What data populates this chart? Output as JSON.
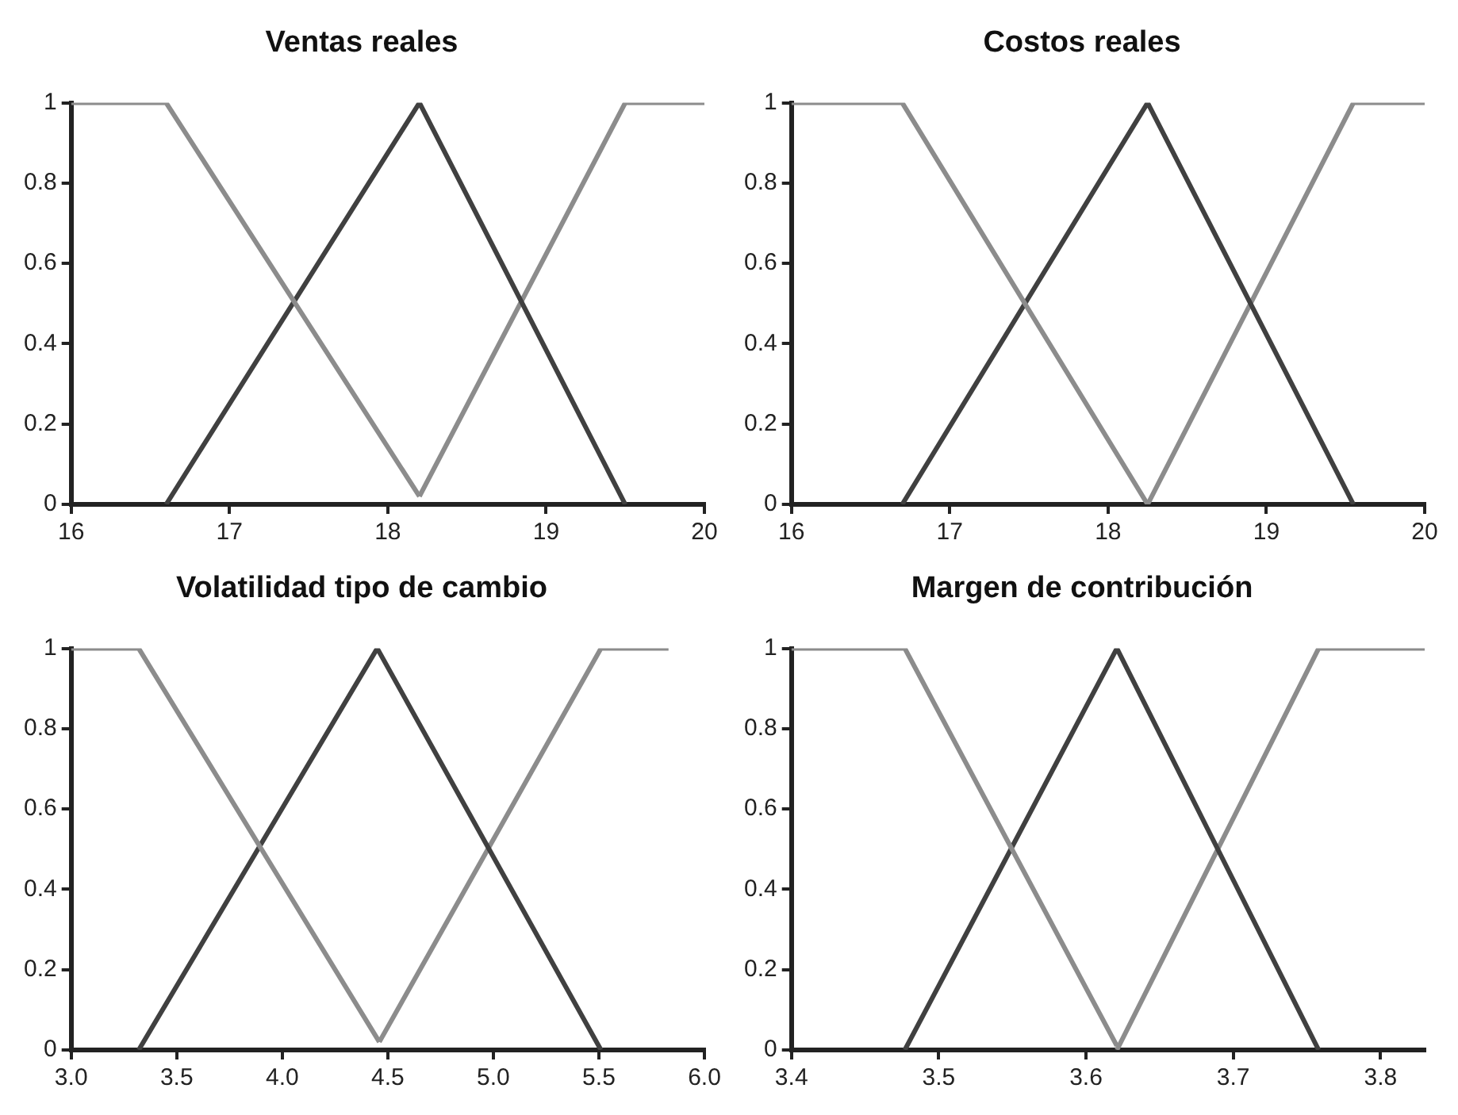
{
  "chart_data": [
    {
      "type": "line",
      "title": "Ventas reales",
      "xlim": [
        16,
        20
      ],
      "xticks": [
        16,
        17,
        18,
        19,
        20
      ],
      "ylim": [
        0,
        1
      ],
      "yticks": [
        0,
        0.2,
        0.4,
        0.6,
        0.8,
        1
      ],
      "grid": false,
      "legend": false,
      "marker": "none",
      "line_style": "solid",
      "series": [
        {
          "color": "#8c8c8c",
          "x": [
            16,
            16.6,
            18.2
          ],
          "values": [
            1,
            1,
            0.02
          ]
        },
        {
          "color": "#404040",
          "x": [
            16.6,
            18.2,
            19.5
          ],
          "values": [
            0,
            1,
            0
          ]
        },
        {
          "color": "#8c8c8c",
          "x": [
            18.2,
            19.5,
            20
          ],
          "values": [
            0.02,
            1,
            1
          ]
        }
      ]
    },
    {
      "type": "line",
      "title": "Costos reales",
      "xlim": [
        16,
        20
      ],
      "xticks": [
        16,
        17,
        18,
        19,
        20
      ],
      "ylim": [
        0,
        1
      ],
      "yticks": [
        0,
        0.2,
        0.4,
        0.6,
        0.8,
        1
      ],
      "grid": false,
      "legend": false,
      "marker": "none",
      "line_style": "solid",
      "series": [
        {
          "color": "#8c8c8c",
          "x": [
            16,
            16.7,
            18.25
          ],
          "values": [
            1,
            1,
            0
          ]
        },
        {
          "color": "#404040",
          "x": [
            16.7,
            18.25,
            19.55
          ],
          "values": [
            0,
            1,
            0
          ]
        },
        {
          "color": "#8c8c8c",
          "x": [
            18.25,
            19.55,
            20
          ],
          "values": [
            0,
            1,
            1
          ]
        }
      ]
    },
    {
      "type": "line",
      "title": "Volatilidad tipo de cambio",
      "xlim": [
        3,
        6
      ],
      "xticks": [
        {
          "value": 3,
          "label": "3.0"
        },
        {
          "value": 3.5,
          "label": "3.5"
        },
        {
          "value": 4,
          "label": "4.0"
        },
        {
          "value": 4.5,
          "label": "4.5"
        },
        {
          "value": 5,
          "label": "5.0"
        },
        {
          "value": 5.5,
          "label": "5.5"
        },
        {
          "value": 6,
          "label": "6.0"
        }
      ],
      "ylim": [
        0,
        1
      ],
      "yticks": [
        0,
        0.2,
        0.4,
        0.6,
        0.8,
        1
      ],
      "grid": false,
      "legend": false,
      "marker": "none",
      "line_style": "solid",
      "series": [
        {
          "color": "#8c8c8c",
          "x": [
            3,
            3.32,
            4.46
          ],
          "values": [
            1,
            1,
            0.02
          ]
        },
        {
          "color": "#404040",
          "x": [
            3.32,
            4.45,
            5.51
          ],
          "values": [
            0,
            1,
            0
          ]
        },
        {
          "color": "#8c8c8c",
          "x": [
            4.46,
            5.51,
            5.83
          ],
          "values": [
            0.02,
            1,
            1
          ]
        }
      ]
    },
    {
      "type": "line",
      "title": "Margen de contribución",
      "xlim": [
        3.4,
        3.83
      ],
      "xticks": [
        3.4,
        3.5,
        3.6,
        3.7,
        3.8
      ],
      "ylim": [
        0,
        1
      ],
      "yticks": [
        0,
        0.2,
        0.4,
        0.6,
        0.8,
        1
      ],
      "grid": false,
      "legend": false,
      "marker": "none",
      "line_style": "solid",
      "series": [
        {
          "color": "#8c8c8c",
          "x": [
            3.4,
            3.477,
            3.621
          ],
          "values": [
            1,
            1,
            0.01
          ]
        },
        {
          "color": "#404040",
          "x": [
            3.477,
            3.621,
            3.758
          ],
          "values": [
            0,
            1,
            0
          ]
        },
        {
          "color": "#8c8c8c",
          "x": [
            3.621,
            3.758,
            3.83
          ],
          "values": [
            0,
            1,
            1
          ]
        }
      ]
    }
  ]
}
